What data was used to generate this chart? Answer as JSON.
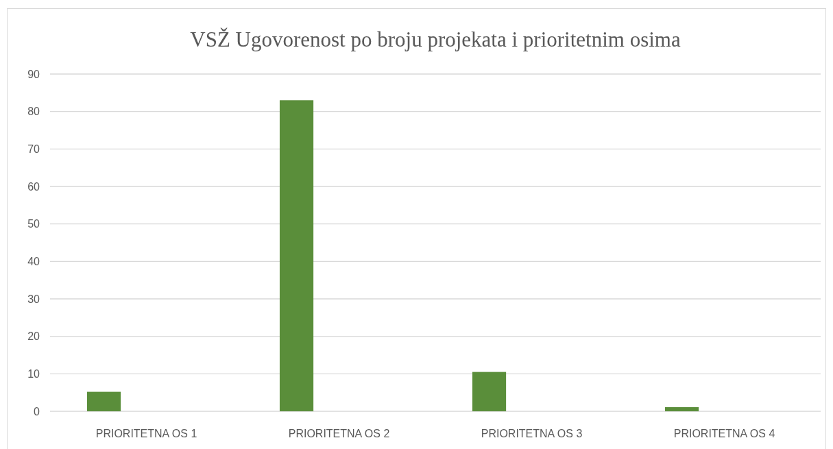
{
  "chart_data": {
    "type": "bar",
    "title": "VSŽ Ugovorenost po broju projekata i prioritetnim osima",
    "categories": [
      "PRIORITETNA OS 1",
      "PRIORITETNA OS 2",
      "PRIORITETNA OS 3",
      "PRIORITETNA OS 4"
    ],
    "values": [
      5.2,
      83,
      10.5,
      1.1
    ],
    "color": "#5a8e3a",
    "ylim": [
      0,
      90
    ],
    "yticks": [
      0,
      10,
      20,
      30,
      40,
      50,
      60,
      70,
      80,
      90
    ],
    "grid": "y"
  }
}
